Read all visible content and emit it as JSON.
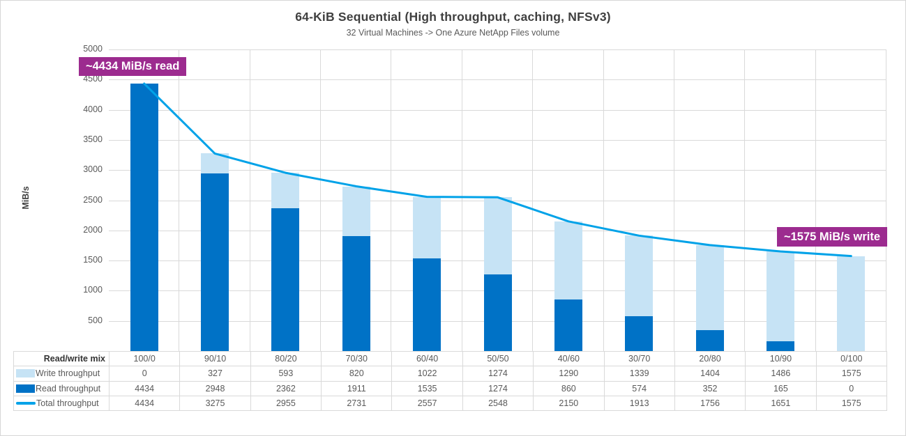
{
  "title": "64-KiB Sequential (High throughput, caching, NFSv3)",
  "subtitle": "32 Virtual Machines -> One Azure NetApp Files volume",
  "annotations": {
    "read_peak": "~4434 MiB/s read",
    "write_peak": "~1575 MiB/s write"
  },
  "colors": {
    "read_bar": "#0072c6",
    "write_bar": "#c6e3f5",
    "total_line": "#00a2e8",
    "annotation_badge": "#9c2b8f",
    "gridline": "#d9d9d9"
  },
  "chart_data": {
    "type": "bar",
    "subtype": "stacked-column-with-line-overlay",
    "title": "64-KiB Sequential (High throughput, caching, NFSv3)",
    "subtitle": "32 Virtual Machines -> One Azure NetApp Files volume",
    "xheader": "Read/write mix",
    "ylabel": "MiB/s",
    "ylim": [
      0,
      5000
    ],
    "ytick_step": 500,
    "grid": true,
    "legend_position": "table-left",
    "categories": [
      "100/0",
      "90/10",
      "80/20",
      "70/30",
      "60/40",
      "50/50",
      "40/60",
      "30/70",
      "20/80",
      "10/90",
      "0/100"
    ],
    "series": [
      {
        "name": "Write throughput",
        "type": "bar",
        "stack_order": "top",
        "color": "#c6e3f5",
        "values": [
          0,
          327,
          593,
          820,
          1022,
          1274,
          1290,
          1339,
          1404,
          1486,
          1575
        ]
      },
      {
        "name": "Read throughput",
        "type": "bar",
        "stack_order": "bottom",
        "color": "#0072c6",
        "values": [
          4434,
          2948,
          2362,
          1911,
          1535,
          1274,
          860,
          574,
          352,
          165,
          0
        ]
      },
      {
        "name": "Total throughput",
        "type": "line",
        "color": "#00a2e8",
        "values": [
          4434,
          3275,
          2955,
          2731,
          2557,
          2548,
          2150,
          1913,
          1756,
          1651,
          1575
        ]
      }
    ]
  }
}
